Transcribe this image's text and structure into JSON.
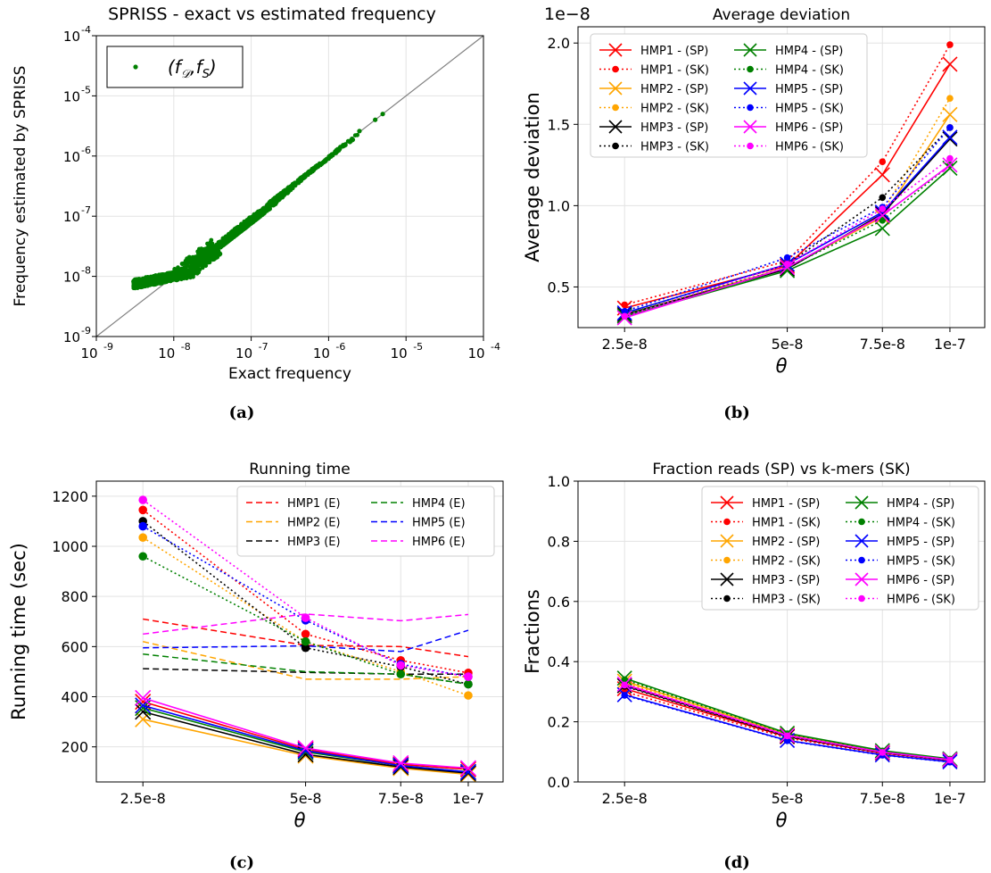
{
  "captions": [
    "(a)",
    "(b)",
    "(c)",
    "(d)"
  ],
  "colors": {
    "HMP1": "#ff0000",
    "HMP2": "#ffa500",
    "HMP3": "#000000",
    "HMP4": "#008000",
    "HMP5": "#0000ff",
    "HMP6": "#ff00ff",
    "scatter": "#008000",
    "diagonal": "#808080"
  },
  "chart_data": [
    {
      "id": "a",
      "type": "scatter",
      "title": "SPRISS - exact vs estimated frequency",
      "xlabel": "Exact frequency",
      "ylabel": "Frequency estimated by SPRISS",
      "xscale": "log",
      "yscale": "log",
      "xlim": [
        1e-09,
        0.0001
      ],
      "ylim": [
        1e-09,
        0.0001
      ],
      "tick_exponents": [
        -9,
        -8,
        -7,
        -6,
        -5,
        -4
      ],
      "legend": "(f_D, f_S)",
      "legend_position": "upper left",
      "grid": true,
      "reference_line": "y = x",
      "cloud_x_range": [
        3e-09,
        2.5e-06
      ],
      "extra_points": [
        [
          2.5e-06,
          2.6e-06
        ],
        [
          4e-06,
          4e-06
        ],
        [
          5e-06,
          5e-06
        ]
      ]
    },
    {
      "id": "b",
      "type": "line",
      "title": "Average deviation",
      "xlabel": "θ",
      "ylabel": "Average deviation",
      "y_offset_label": "1e−8",
      "x": [
        2.5e-08,
        5e-08,
        7.5e-08,
        1e-07
      ],
      "x_tick_labels": [
        "2.5e-8",
        "5e-8",
        "7.5e-8",
        "1e-7"
      ],
      "xscale": "log",
      "ylim": [
        0.25,
        2.1
      ],
      "y_ticks": [
        "0.5",
        "1.0",
        "1.5",
        "2.0"
      ],
      "legend_position": "upper left",
      "grid": true,
      "series": [
        {
          "name": "HMP1 - (SP)",
          "style": "solid-x",
          "values": [
            0.37,
            0.63,
            1.19,
            1.87
          ]
        },
        {
          "name": "HMP1 - (SK)",
          "style": "dotted-dot",
          "values": [
            0.39,
            0.66,
            1.27,
            1.99
          ]
        },
        {
          "name": "HMP2 - (SP)",
          "style": "solid-x",
          "values": [
            0.33,
            0.62,
            0.93,
            1.56
          ]
        },
        {
          "name": "HMP2 - (SK)",
          "style": "dotted-dot",
          "values": [
            0.34,
            0.64,
            0.96,
            1.66
          ]
        },
        {
          "name": "HMP3 - (SP)",
          "style": "solid-x",
          "values": [
            0.33,
            0.61,
            0.95,
            1.41
          ]
        },
        {
          "name": "HMP3 - (SK)",
          "style": "dotted-dot",
          "values": [
            0.34,
            0.64,
            1.05,
            1.48
          ]
        },
        {
          "name": "HMP4 - (SP)",
          "style": "solid-x",
          "values": [
            0.32,
            0.6,
            0.86,
            1.23
          ]
        },
        {
          "name": "HMP4 - (SK)",
          "style": "dotted-dot",
          "values": [
            0.33,
            0.62,
            0.91,
            1.25
          ]
        },
        {
          "name": "HMP5 - (SP)",
          "style": "solid-x",
          "values": [
            0.34,
            0.64,
            0.96,
            1.42
          ]
        },
        {
          "name": "HMP5 - (SK)",
          "style": "dotted-dot",
          "values": [
            0.35,
            0.68,
            0.99,
            1.48
          ]
        },
        {
          "name": "HMP6 - (SP)",
          "style": "solid-x",
          "values": [
            0.31,
            0.62,
            0.94,
            1.25
          ]
        },
        {
          "name": "HMP6 - (SK)",
          "style": "dotted-dot",
          "values": [
            0.32,
            0.64,
            0.98,
            1.29
          ]
        }
      ]
    },
    {
      "id": "c",
      "type": "line",
      "title": "Running time",
      "xlabel": "θ",
      "ylabel": "Running time (sec)",
      "x": [
        2.5e-08,
        5e-08,
        7.5e-08,
        1e-07
      ],
      "x_tick_labels": [
        "2.5e-8",
        "5e-8",
        "7.5e-8",
        "1e-7"
      ],
      "xscale": "log",
      "ylim": [
        60,
        1260
      ],
      "y_ticks": [
        "200",
        "400",
        "600",
        "800",
        "1000",
        "1200"
      ],
      "legend_position": "upper right",
      "legend_entries": [
        "HMP1 (E)",
        "HMP2 (E)",
        "HMP3 (E)",
        "HMP4 (E)",
        "HMP5 (E)",
        "HMP6 (E)"
      ],
      "grid": true,
      "series": [
        {
          "name": "HMP1 (E)",
          "style": "dashed",
          "values": [
            710,
            605,
            600,
            560
          ]
        },
        {
          "name": "HMP2 (E)",
          "style": "dashed",
          "values": [
            620,
            470,
            470,
            480
          ]
        },
        {
          "name": "HMP3 (E)",
          "style": "dashed",
          "values": [
            512,
            497,
            490,
            490
          ]
        },
        {
          "name": "HMP4 (E)",
          "style": "dashed",
          "values": [
            570,
            500,
            490,
            450
          ]
        },
        {
          "name": "HMP5 (E)",
          "style": "dashed",
          "values": [
            595,
            603,
            580,
            665
          ]
        },
        {
          "name": "HMP6 (E)",
          "style": "dashed",
          "values": [
            650,
            730,
            703,
            728
          ]
        },
        {
          "color": "HMP1",
          "style": "dotted-dot",
          "values": [
            1145,
            650,
            545,
            495
          ]
        },
        {
          "color": "HMP2",
          "style": "dotted-dot",
          "values": [
            1035,
            620,
            500,
            405
          ]
        },
        {
          "color": "HMP3",
          "style": "dotted-dot",
          "values": [
            1100,
            595,
            520,
            450
          ]
        },
        {
          "color": "HMP4",
          "style": "dotted-dot",
          "values": [
            960,
            620,
            490,
            450
          ]
        },
        {
          "color": "HMP5",
          "style": "dotted-dot",
          "values": [
            1080,
            705,
            530,
            480
          ]
        },
        {
          "color": "HMP6",
          "style": "dotted-dot",
          "values": [
            1185,
            715,
            525,
            480
          ]
        },
        {
          "color": "HMP1",
          "style": "solid-x",
          "values": [
            380,
            190,
            130,
            110
          ]
        },
        {
          "color": "HMP2",
          "style": "solid-x",
          "values": [
            310,
            165,
            115,
            90
          ]
        },
        {
          "color": "HMP3",
          "style": "solid-x",
          "values": [
            340,
            170,
            120,
            95
          ]
        },
        {
          "color": "HMP4",
          "style": "solid-x",
          "values": [
            355,
            180,
            125,
            100
          ]
        },
        {
          "color": "HMP5",
          "style": "solid-x",
          "values": [
            365,
            185,
            125,
            100
          ]
        },
        {
          "color": "HMP6",
          "style": "solid-x",
          "values": [
            395,
            195,
            135,
            115
          ]
        }
      ]
    },
    {
      "id": "d",
      "type": "line",
      "title": "Fraction reads (SP) vs k-mers (SK)",
      "xlabel": "θ",
      "ylabel": "Fractions",
      "x": [
        2.5e-08,
        5e-08,
        7.5e-08,
        1e-07
      ],
      "x_tick_labels": [
        "2.5e-8",
        "5e-8",
        "7.5e-8",
        "1e-7"
      ],
      "xscale": "log",
      "ylim": [
        0.0,
        1.0
      ],
      "y_ticks": [
        "0.0",
        "0.2",
        "0.4",
        "0.6",
        "0.8",
        "1.0"
      ],
      "legend_position": "upper right",
      "grid": true,
      "series": [
        {
          "name": "HMP1 - (SP)",
          "style": "solid-x",
          "values": [
            0.31,
            0.15,
            0.096,
            0.072
          ]
        },
        {
          "name": "HMP1 - (SK)",
          "style": "dotted-dot",
          "values": [
            0.3,
            0.146,
            0.094,
            0.07
          ]
        },
        {
          "name": "HMP2 - (SP)",
          "style": "solid-x",
          "values": [
            0.335,
            0.158,
            0.1,
            0.075
          ]
        },
        {
          "name": "HMP2 - (SK)",
          "style": "dotted-dot",
          "values": [
            0.33,
            0.155,
            0.099,
            0.074
          ]
        },
        {
          "name": "HMP3 - (SP)",
          "style": "solid-x",
          "values": [
            0.32,
            0.152,
            0.098,
            0.073
          ]
        },
        {
          "name": "HMP3 - (SK)",
          "style": "dotted-dot",
          "values": [
            0.318,
            0.15,
            0.097,
            0.072
          ]
        },
        {
          "name": "HMP4 - (SP)",
          "style": "solid-x",
          "values": [
            0.345,
            0.162,
            0.104,
            0.077
          ]
        },
        {
          "name": "HMP4 - (SK)",
          "style": "dotted-dot",
          "values": [
            0.34,
            0.16,
            0.103,
            0.076
          ]
        },
        {
          "name": "HMP5 - (SP)",
          "style": "solid-x",
          "values": [
            0.29,
            0.138,
            0.09,
            0.067
          ]
        },
        {
          "name": "HMP5 - (SK)",
          "style": "dotted-dot",
          "values": [
            0.288,
            0.137,
            0.089,
            0.066
          ]
        },
        {
          "name": "HMP6 - (SP)",
          "style": "solid-x",
          "values": [
            0.325,
            0.155,
            0.099,
            0.074
          ]
        },
        {
          "name": "HMP6 - (SK)",
          "style": "dotted-dot",
          "values": [
            0.322,
            0.153,
            0.098,
            0.073
          ]
        }
      ]
    }
  ]
}
